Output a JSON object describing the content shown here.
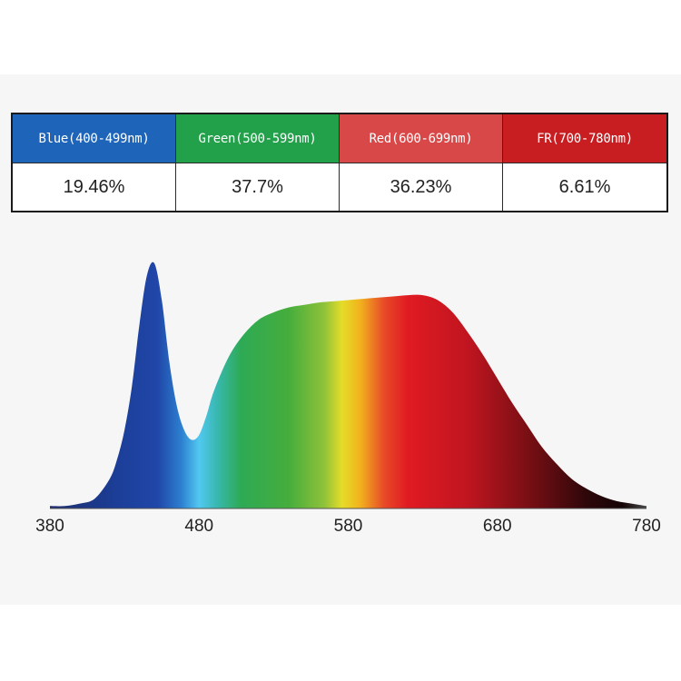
{
  "table": {
    "headers": [
      {
        "label": "Blue(400-499nm)",
        "color": "#1e64b8"
      },
      {
        "label": "Green(500-599nm)",
        "color": "#22a04a"
      },
      {
        "label": "Red(600-699nm)",
        "color": "#d84848"
      },
      {
        "label": "FR(700-780nm)",
        "color": "#c81e22"
      }
    ],
    "values": [
      "19.46%",
      "37.7%",
      "36.23%",
      "6.61%"
    ]
  },
  "chart_data": {
    "type": "area",
    "title": "",
    "xlabel": "",
    "ylabel": "",
    "xlim": [
      380,
      780
    ],
    "ylim": [
      0,
      1
    ],
    "x_ticks": [
      "380",
      "480",
      "580",
      "680",
      "780"
    ],
    "grid": false,
    "series": [
      {
        "x": [
          380,
          390,
          400,
          410,
          420,
          425,
          430,
          435,
          440,
          445,
          450,
          455,
          460,
          465,
          470,
          475,
          480,
          485,
          490,
          500,
          510,
          520,
          530,
          540,
          550,
          560,
          570,
          580,
          590,
          600,
          610,
          620,
          630,
          640,
          650,
          660,
          670,
          680,
          690,
          700,
          710,
          720,
          730,
          740,
          750,
          760,
          770,
          780
        ],
        "y": [
          0.01,
          0.01,
          0.02,
          0.04,
          0.12,
          0.2,
          0.32,
          0.5,
          0.75,
          0.95,
          1.0,
          0.85,
          0.6,
          0.42,
          0.32,
          0.28,
          0.3,
          0.38,
          0.48,
          0.62,
          0.71,
          0.77,
          0.8,
          0.82,
          0.83,
          0.84,
          0.845,
          0.85,
          0.855,
          0.86,
          0.865,
          0.87,
          0.87,
          0.85,
          0.8,
          0.72,
          0.63,
          0.53,
          0.43,
          0.34,
          0.25,
          0.18,
          0.12,
          0.08,
          0.05,
          0.03,
          0.02,
          0.01
        ]
      }
    ]
  }
}
